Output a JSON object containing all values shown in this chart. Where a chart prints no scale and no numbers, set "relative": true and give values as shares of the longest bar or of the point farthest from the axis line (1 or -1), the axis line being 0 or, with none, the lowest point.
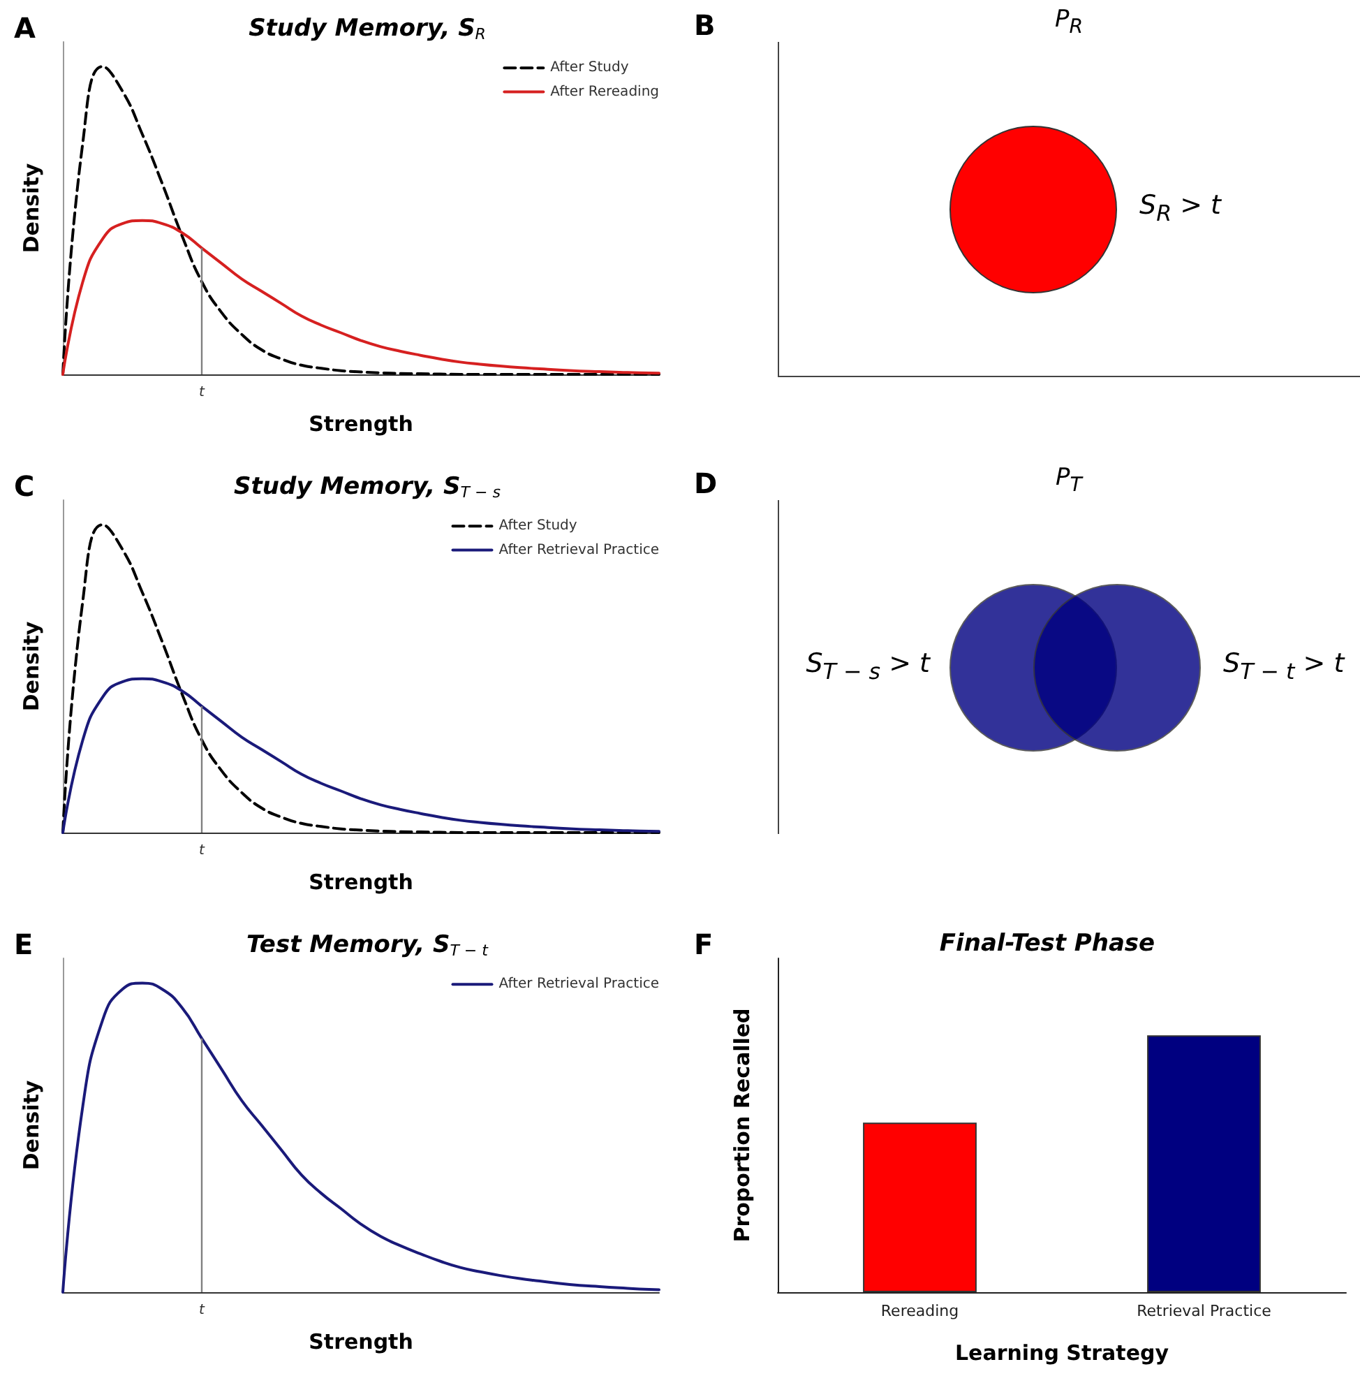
{
  "chart_data": [
    {
      "type": "line",
      "title": "Study Memory, S$_{R}$",
      "xlabel": "Strength",
      "ylabel": "Density",
      "annotations": [
        "A",
        "t"
      ],
      "relative": true,
      "legend": "top right",
      "marker": "none",
      "categories": [
        null,
        null,
        null,
        null,
        null,
        null,
        null,
        null,
        null,
        null,
        null,
        null,
        null,
        null,
        null,
        null,
        null,
        null,
        null,
        null,
        null,
        null,
        null,
        null,
        null,
        null,
        null,
        null,
        null,
        null,
        null
      ],
      "series": [
        {
          "name": "After Study",
          "color": "#000000",
          "line_style": "dashed",
          "values": [
            0,
            0.75,
            1,
            0.92,
            0.78,
            0.62,
            0.45,
            0.3,
            0.2,
            0.13,
            0.08,
            0.05,
            0.03,
            0.02,
            0.012,
            0.008,
            0.005,
            0.003,
            0.002,
            0.001,
            0,
            0,
            0,
            0,
            0,
            0,
            0,
            0,
            0,
            0,
            0
          ]
        },
        {
          "name": "After Rereading",
          "color": "#d62020",
          "line_style": "solid",
          "values": [
            0,
            0.3,
            0.44,
            0.49,
            0.5,
            0.49,
            0.46,
            0.41,
            0.36,
            0.31,
            0.27,
            0.23,
            0.19,
            0.16,
            0.135,
            0.11,
            0.09,
            0.075,
            0.062,
            0.05,
            0.04,
            0.033,
            0.027,
            0.022,
            0.018,
            0.014,
            0.011,
            0.009,
            0.007,
            0.005,
            0.004
          ]
        }
      ]
    },
    {
      "type": "other",
      "title": "P$_{R}$",
      "annotations": [
        "B",
        "S$_{R}$ > t"
      ],
      "colors": [
        "#ff0000"
      ]
    },
    {
      "type": "line",
      "title": "Study Memory, S$_{T − s}$",
      "xlabel": "Strength",
      "ylabel": "Density",
      "annotations": [
        "C",
        "t"
      ],
      "relative": true,
      "legend": "top right",
      "marker": "none",
      "categories": [
        null,
        null,
        null,
        null,
        null,
        null,
        null,
        null,
        null,
        null,
        null,
        null,
        null,
        null,
        null,
        null,
        null,
        null,
        null,
        null,
        null,
        null,
        null,
        null,
        null,
        null,
        null,
        null,
        null,
        null,
        null
      ],
      "series": [
        {
          "name": "After Study",
          "color": "#000000",
          "line_style": "dashed",
          "values": [
            0,
            0.75,
            1,
            0.92,
            0.78,
            0.62,
            0.45,
            0.3,
            0.2,
            0.13,
            0.08,
            0.05,
            0.03,
            0.02,
            0.012,
            0.008,
            0.005,
            0.003,
            0.002,
            0.001,
            0,
            0,
            0,
            0,
            0,
            0,
            0,
            0,
            0,
            0,
            0
          ]
        },
        {
          "name": "After Retrieval Practice",
          "color": "#1a1a7a",
          "line_style": "solid",
          "values": [
            0,
            0.3,
            0.44,
            0.49,
            0.5,
            0.49,
            0.46,
            0.41,
            0.36,
            0.31,
            0.27,
            0.23,
            0.19,
            0.16,
            0.135,
            0.11,
            0.09,
            0.075,
            0.062,
            0.05,
            0.04,
            0.033,
            0.027,
            0.022,
            0.018,
            0.014,
            0.011,
            0.009,
            0.007,
            0.005,
            0.004
          ]
        }
      ]
    },
    {
      "type": "other",
      "title": "P$_{T}$",
      "annotations": [
        "D",
        "S$_{T − s}$ > t",
        "S$_{T − t}$ > t"
      ],
      "colors": [
        "#000080",
        "#000080"
      ]
    },
    {
      "type": "line",
      "title": "Test Memory, S$_{T − t}$",
      "xlabel": "Strength",
      "ylabel": "Density",
      "annotations": [
        "E",
        "t"
      ],
      "relative": true,
      "legend": "top right",
      "marker": "none",
      "categories": [
        null,
        null,
        null,
        null,
        null,
        null,
        null,
        null,
        null,
        null,
        null,
        null,
        null,
        null,
        null,
        null,
        null,
        null,
        null,
        null,
        null,
        null,
        null,
        null,
        null,
        null,
        null,
        null,
        null,
        null,
        null
      ],
      "series": [
        {
          "name": "After Retrieval Practice",
          "color": "#1a1a7a",
          "line_style": "solid",
          "values": [
            0,
            0.6,
            0.88,
            0.98,
            1,
            0.98,
            0.92,
            0.82,
            0.72,
            0.62,
            0.54,
            0.46,
            0.38,
            0.32,
            0.27,
            0.22,
            0.18,
            0.15,
            0.124,
            0.1,
            0.08,
            0.066,
            0.054,
            0.044,
            0.036,
            0.028,
            0.022,
            0.018,
            0.014,
            0.01,
            0.008
          ]
        }
      ]
    },
    {
      "type": "bar",
      "title": "Final-Test Phase",
      "xlabel": "Learning Strategy",
      "ylabel": "Proportion Recalled",
      "annotations": [
        "F"
      ],
      "relative": true,
      "categories": [
        "Rereading",
        "Retrieval Practice"
      ],
      "values": [
        0.66,
        1
      ],
      "colors": [
        "#ff0000",
        "#000080"
      ]
    }
  ]
}
